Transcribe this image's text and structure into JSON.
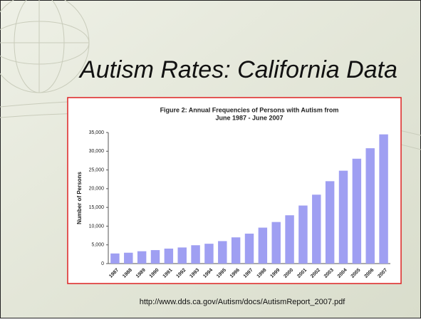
{
  "slide_title": "Autism Rates: California Data",
  "source_url": "http://www.dds.ca.gov/Autism/docs/AutismReport_2007.pdf",
  "chart_data": {
    "type": "bar",
    "title": [
      "Figure 2: Annual Frequencies of Persons with Autism from",
      "June 1987 - June 2007"
    ],
    "y_label": "Number of Persons",
    "categories": [
      "1987",
      "1988",
      "1989",
      "1990",
      "1991",
      "1992",
      "1993",
      "1994",
      "1995",
      "1996",
      "1997",
      "1998",
      "1999",
      "2000",
      "2001",
      "2002",
      "2003",
      "2004",
      "2005",
      "2006",
      "2007"
    ],
    "values": [
      2700,
      2900,
      3300,
      3600,
      4000,
      4300,
      4900,
      5300,
      6000,
      7000,
      8000,
      9600,
      11100,
      12900,
      15500,
      18400,
      22000,
      24800,
      28000,
      30800,
      34500
    ],
    "color": "#9f9ff2",
    "ylim": [
      0,
      35000
    ],
    "yticks": [
      0,
      {
        "value": 5000,
        "label": "5,000"
      },
      {
        "value": 10000,
        "label": "10,000"
      },
      {
        "value": 15000,
        "label": "15,000"
      },
      {
        "value": 20000,
        "label": "20,000"
      },
      {
        "value": 25000,
        "label": "25,000"
      },
      {
        "value": 30000,
        "label": "30,000"
      },
      {
        "value": 35000,
        "label": "35,000"
      }
    ],
    "grid": false
  }
}
